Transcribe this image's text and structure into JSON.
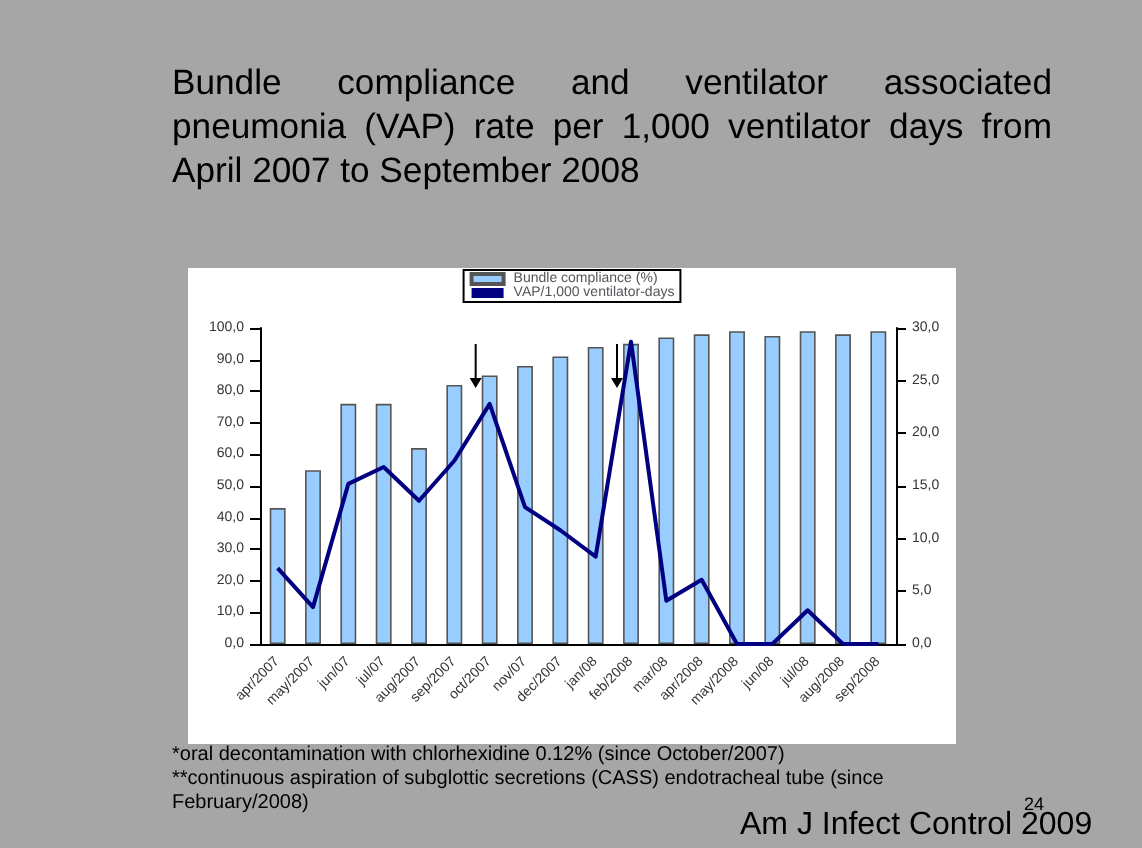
{
  "chart_data": {
    "type": "bar",
    "title": "Bundle compliance and ventilator associated pneumonia (VAP) rate per 1,000 ventilator days from April 2007 to September 2008",
    "categories": [
      "apr/2007",
      "may/2007",
      "jun/07",
      "jul/07",
      "aug/2007",
      "sep/2007",
      "oct/2007",
      "nov/07",
      "dec/2007",
      "jan/08",
      "feb/2008",
      "mar/08",
      "apr/2008",
      "may/2008",
      "jun/08",
      "jul/08",
      "aug/2008",
      "sep/2008"
    ],
    "series": [
      {
        "name": "Bundle compliance (%)",
        "color": "#99ccff",
        "values": [
          43,
          55,
          76,
          76,
          62,
          82,
          85,
          88,
          91,
          94,
          95,
          97,
          98,
          99,
          97.5,
          99,
          98,
          99
        ]
      },
      {
        "name": "VAP/1,000 ventilator-days",
        "type": "line",
        "axis": "y2",
        "color": "#000080",
        "values": [
          7.2,
          3.5,
          15.2,
          16.8,
          13.6,
          17.4,
          22.8,
          13,
          10.8,
          8.3,
          28.7,
          4.1,
          6.1,
          0,
          0,
          3.2,
          0,
          0
        ]
      }
    ],
    "ylim": [
      0,
      100
    ],
    "yticks": [
      {
        "value": 0,
        "label": "0,0"
      },
      {
        "value": 10,
        "label": "10,0"
      },
      {
        "value": 20,
        "label": "20,0"
      },
      {
        "value": 30,
        "label": "30,0"
      },
      {
        "value": 40,
        "label": "40,0"
      },
      {
        "value": 50,
        "label": "50,0"
      },
      {
        "value": 60,
        "label": "60,0"
      },
      {
        "value": 70,
        "label": "70,0"
      },
      {
        "value": 80,
        "label": "80,0"
      },
      {
        "value": 90,
        "label": "90,0"
      },
      {
        "value": 100,
        "label": "100,0"
      }
    ],
    "y2lim": [
      0,
      30
    ],
    "y2ticks": [
      {
        "value": 0,
        "label": "0,0"
      },
      {
        "value": 5,
        "label": "5,0"
      },
      {
        "value": 10,
        "label": "10,0"
      },
      {
        "value": 15,
        "label": "15,0"
      },
      {
        "value": 20,
        "label": "20,0"
      },
      {
        "value": 25,
        "label": "25,0"
      },
      {
        "value": 30,
        "label": "30,0"
      }
    ],
    "grid": false,
    "legend": "top",
    "marker": "none",
    "annotations": [
      "*oral decontamination with chlorhexidine 0.12% (since October/2007)",
      "**continuous aspiration of subglottic secretions (CASS) endotracheal tube (since February/2008)",
      "24",
      "Am J Infect Control 2009"
    ]
  }
}
